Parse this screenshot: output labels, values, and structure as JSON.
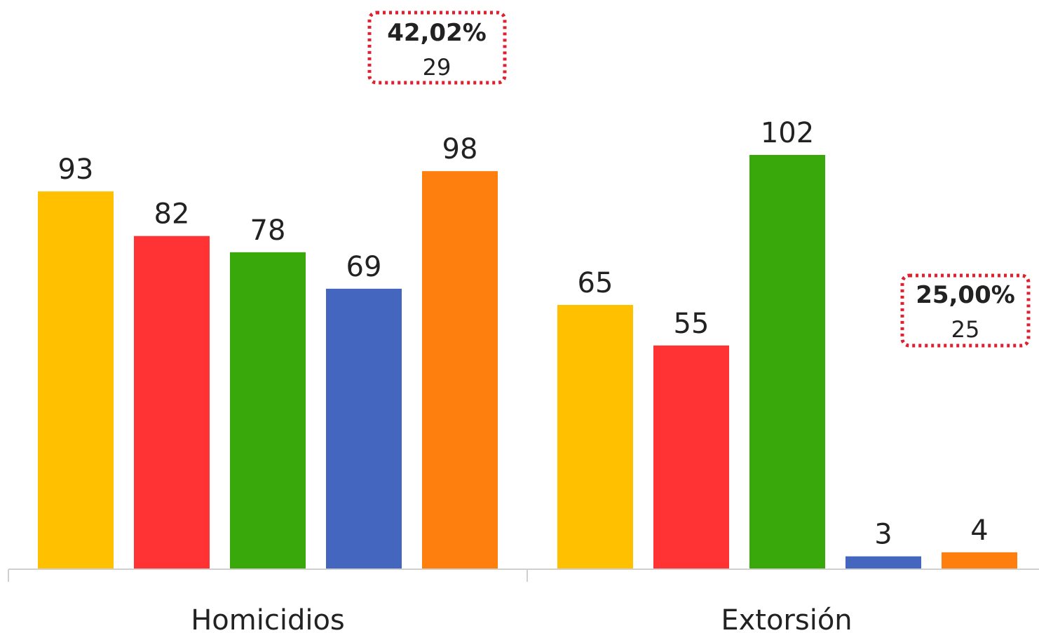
{
  "chart_data": {
    "type": "bar",
    "categories": [
      "Homicidios",
      "Extorsión"
    ],
    "series": [
      {
        "color": "#FFC000",
        "values": [
          93,
          65
        ]
      },
      {
        "color": "#FF3333",
        "values": [
          82,
          55
        ]
      },
      {
        "color": "#38A80A",
        "values": [
          78,
          102
        ]
      },
      {
        "color": "#4466BF",
        "values": [
          69,
          3
        ]
      },
      {
        "color": "#FF7F0E",
        "values": [
          98,
          4
        ]
      }
    ],
    "ylim": [
      0,
      105
    ],
    "grid": false,
    "callouts": [
      {
        "category": "Homicidios",
        "percent": "42,02%",
        "value": "29",
        "border_color": "#E02030"
      },
      {
        "category": "Extorsión",
        "percent": "25,00%",
        "value": "25",
        "border_color": "#E02030"
      }
    ]
  }
}
